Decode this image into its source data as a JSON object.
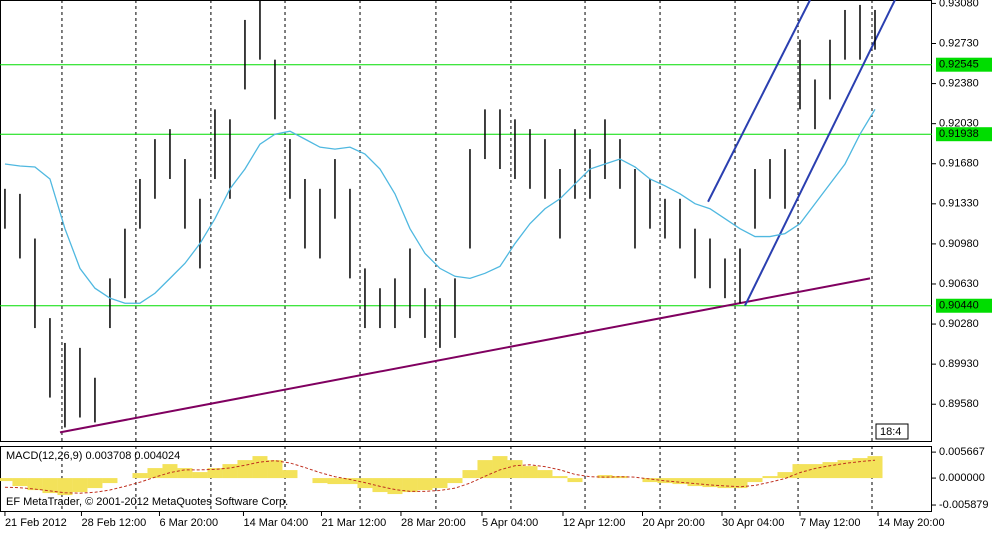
{
  "chart_data": {
    "type": "ohlc",
    "xlim": [
      -0.33,
      61.8
    ],
    "ylim": [
      0.8925,
      0.9311
    ],
    "yticks": [
      {
        "value": 0.9308,
        "label": "0.93080"
      },
      {
        "value": 0.9273,
        "label": "0.92730"
      },
      {
        "value": 0.9238,
        "label": "0.92380"
      },
      {
        "value": 0.9203,
        "label": "0.92030"
      },
      {
        "value": 0.9168,
        "label": "0.91680"
      },
      {
        "value": 0.9133,
        "label": "0.91330"
      },
      {
        "value": 0.9098,
        "label": "0.90980"
      },
      {
        "value": 0.9063,
        "label": "0.90630"
      },
      {
        "value": 0.9028,
        "label": "0.90280"
      },
      {
        "value": 0.8993,
        "label": "0.89930"
      },
      {
        "value": 0.8958,
        "label": "0.89580"
      }
    ],
    "xticks": [
      {
        "value": 0,
        "label": "21 Feb 2012"
      },
      {
        "value": 5.1,
        "label": "28 Feb 12:00"
      },
      {
        "value": 10.3,
        "label": "6 Mar 20:00"
      },
      {
        "value": 15.9,
        "label": "14 Mar 04:00"
      },
      {
        "value": 21.1,
        "label": "21 Mar 12:00"
      },
      {
        "value": 26.4,
        "label": "28 Mar 20:00"
      },
      {
        "value": 31.8,
        "label": "5 Apr 04:00"
      },
      {
        "value": 37.2,
        "label": "12 Apr 12:00"
      },
      {
        "value": 42.5,
        "label": "20 Apr 20:00"
      },
      {
        "value": 47.8,
        "label": "30 Apr 04:00"
      },
      {
        "value": 53,
        "label": "7 May 12:00"
      },
      {
        "value": 58.2,
        "label": "14 May 20:00"
      }
    ],
    "xgrid": [
      3.8,
      8.73,
      13.73,
      18.67,
      23.67,
      28.73,
      33.73,
      38.67,
      43.67,
      48.67,
      52.87,
      57.8
    ],
    "bar_color": "#000000",
    "high": [
      0.91461,
      0.91417,
      0.91027,
      0.90332,
      0.90115,
      0.90072,
      0.89811,
      0.90679,
      0.91113,
      0.91547,
      0.91895,
      0.91982,
      0.91721,
      0.91374,
      0.92155,
      0.92068,
      0.92936,
      0.9311,
      0.92589,
      0.91895,
      0.91547,
      0.91461,
      0.91721,
      0.91461,
      0.90766,
      0.90593,
      0.90679,
      0.9094,
      0.90593,
      0.90506,
      0.90679,
      0.91808,
      0.92155,
      0.92155,
      0.92068,
      0.91982,
      0.91895,
      0.91634,
      0.91982,
      0.91808,
      0.92068,
      0.91895,
      0.91634,
      0.91547,
      0.91374,
      0.91374,
      0.91113,
      0.91027,
      0.90853,
      0.9094,
      0.91634,
      0.91721,
      0.91808,
      0.92763,
      0.92416,
      0.92763,
      0.93023,
      0.93067,
      0.93023
    ],
    "low": [
      0.91113,
      0.90853,
      0.90245,
      0.89638,
      0.89377,
      0.89464,
      0.89421,
      0.90245,
      0.90506,
      0.91113,
      0.91374,
      0.91547,
      0.91113,
      0.90766,
      0.91547,
      0.91374,
      0.92329,
      0.92589,
      0.92068,
      0.91374,
      0.9094,
      0.90853,
      0.912,
      0.90679,
      0.90245,
      0.90245,
      0.90245,
      0.90332,
      0.90159,
      0.90072,
      0.90159,
      0.9094,
      0.91721,
      0.91634,
      0.91547,
      0.91461,
      0.91374,
      0.91027,
      0.91374,
      0.91374,
      0.91547,
      0.91461,
      0.9094,
      0.91113,
      0.91027,
      0.9094,
      0.90679,
      0.90593,
      0.90506,
      0.90462,
      0.91113,
      0.91374,
      0.91287,
      0.92155,
      0.91982,
      0.92242,
      0.92589,
      0.92589,
      0.92676
    ],
    "ma": {
      "color": "#4fb8e0",
      "values": [
        0.91678,
        0.9166,
        0.91652,
        0.91547,
        0.91113,
        0.90766,
        0.90593,
        0.90506,
        0.90462,
        0.90462,
        0.90549,
        0.90679,
        0.9081,
        0.90983,
        0.912,
        0.91461,
        0.91634,
        0.91851,
        0.91938,
        0.91964,
        0.91895,
        0.91825,
        0.91808,
        0.91825,
        0.91765,
        0.91634,
        0.91417,
        0.91113,
        0.90897,
        0.90766,
        0.90697,
        0.90679,
        0.90723,
        0.90784,
        0.90983,
        0.91157,
        0.91287,
        0.91374,
        0.91504,
        0.91634,
        0.91678,
        0.91721,
        0.91652,
        0.91547,
        0.91487,
        0.91417,
        0.91331,
        0.91287,
        0.912,
        0.91113,
        0.91044,
        0.91044,
        0.9107,
        0.91157,
        0.91331,
        0.91504,
        0.91678,
        0.91938,
        0.92155
      ]
    },
    "levels": [
      {
        "value": 0.92545,
        "color": "#00dd00"
      },
      {
        "value": 0.91938,
        "color": "#00dd00"
      },
      {
        "value": 0.9044,
        "label": "0.90440",
        "color": "#00dd00"
      }
    ],
    "trendlines": [
      {
        "color": "#800060",
        "x": [
          3.67,
          57.67
        ],
        "y": [
          0.89334,
          0.90679
        ]
      },
      {
        "color": "#2a3fb0",
        "x": [
          46.87,
          53.67
        ],
        "y": [
          0.91348,
          0.9311
        ]
      },
      {
        "color": "#2a3fb0",
        "x": [
          49.33,
          59.33
        ],
        "y": [
          0.9044,
          0.9311
        ]
      }
    ],
    "clock": "18:4",
    "copyright": "EF MetaTrader, © 2001-2012 MetaQuotes Software Corp.",
    "macd": {
      "label": "MACD(12,26,9) 0.003708 0.004024",
      "ylim": [
        -0.0074,
        0.007
      ],
      "yticks": [
        0.005667,
        {
          "value": 0,
          "label": "0.000000"
        },
        -0.005879
      ],
      "hist": {
        "color": "#f3e25a",
        "values": [
          -0.000654,
          -0.001744,
          -0.002616,
          -0.00327,
          -0.003706,
          -0.003052,
          -0.00218,
          -0.00109,
          0,
          0.00109,
          0.00218,
          0.003052,
          0.00218,
          0.001308,
          0.00218,
          0.003052,
          0.003924,
          0.004796,
          0.003924,
          0.001744,
          0,
          -0.00109,
          -0.001308,
          -0.001308,
          -0.00218,
          -0.003052,
          -0.003488,
          -0.003052,
          -0.002616,
          -0.00218,
          -0.00109,
          0.001744,
          0.003924,
          0.004796,
          0.003924,
          0.002616,
          0.001744,
          0.000436,
          -0.000872,
          0,
          0.000654,
          0.000436,
          0,
          -0.000872,
          -0.00109,
          -0.001308,
          -0.001744,
          -0.001962,
          -0.00218,
          -0.00218,
          -0.000872,
          0.000436,
          0.001308,
          0.003052,
          0.003052,
          0.003488,
          0.003924,
          0.00436,
          0.004796
        ]
      },
      "signal": {
        "color": "#c03020",
        "values": [
          -0.002,
          -0.0021,
          -0.0024,
          -0.0028,
          -0.0032,
          -0.0033,
          -0.0031,
          -0.0026,
          -0.0018,
          -0.0009,
          0.0002,
          0.0012,
          0.0018,
          0.0018,
          0.0019,
          0.0022,
          0.0028,
          0.0035,
          0.0038,
          0.0033,
          0.0023,
          0.0012,
          0.0003,
          -0.0003,
          -0.001,
          -0.0018,
          -0.0025,
          -0.0029,
          -0.0029,
          -0.0027,
          -0.0022,
          -0.0011,
          0.0004,
          0.0018,
          0.0027,
          0.0029,
          0.0025,
          0.0018,
          0.0008,
          0.0003,
          0.0002,
          0.0003,
          0.0002,
          -0.0002,
          -0.0006,
          -0.0009,
          -0.0012,
          -0.0015,
          -0.0017,
          -0.0019,
          -0.0016,
          -0.0009,
          -0.0001,
          0.0012,
          0.0021,
          0.0027,
          0.0032,
          0.0036,
          0.0039
        ]
      }
    }
  }
}
